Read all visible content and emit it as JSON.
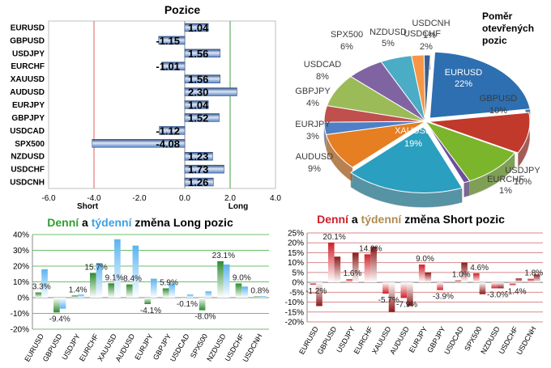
{
  "chart_data": [
    {
      "type": "bar",
      "title": "Pozice",
      "orientation": "horizontal",
      "categories": [
        "EURUSD",
        "GBPUSD",
        "USDJPY",
        "EURCHF",
        "XAUUSD",
        "AUDUSD",
        "EURJPY",
        "GBPJPY",
        "USDCAD",
        "SPX500",
        "NZDUSD",
        "USDCHF",
        "USDCNH"
      ],
      "values": [
        1.04,
        -1.15,
        1.56,
        -1.01,
        1.56,
        2.3,
        1.04,
        1.52,
        -1.12,
        -4.08,
        1.23,
        1.73,
        1.26
      ],
      "value_labels": [
        "1.04",
        "-1.15",
        "1.56",
        "-1.01",
        "1.56",
        "2.30",
        "1.04",
        "1.52",
        "-1.12",
        "-4.08",
        "1.23",
        "1.73",
        "1.26"
      ],
      "xlim": [
        -6,
        4
      ],
      "xticks": [
        "-6.0",
        "-4.0",
        "-2.0",
        "0.0",
        "2.0",
        "4.0"
      ],
      "annotations": {
        "left": "Short",
        "right": "Long"
      },
      "reference_lines": [
        {
          "x": -4,
          "color": "#e06060"
        },
        {
          "x": 0,
          "color": "#888888"
        },
        {
          "x": 2,
          "color": "#40a040"
        }
      ],
      "colors": {
        "bar": "#5b84c6",
        "bar_light": "#dce6f5",
        "bar_dark": "#2e4f86"
      }
    },
    {
      "type": "pie",
      "title": "Poměr otevřených pozic",
      "slices": [
        {
          "label": "EURUSD",
          "percent": 22,
          "text": "22%",
          "color": "#2d6fb0"
        },
        {
          "label": "GBPUSD",
          "percent": 10,
          "text": "10%",
          "color": "#c0392b"
        },
        {
          "label": "USDJPY",
          "percent": 10,
          "text": "10%",
          "color": "#7bb52b"
        },
        {
          "label": "EURCHF",
          "percent": 1,
          "text": "1%",
          "color": "#6c4d9e"
        },
        {
          "label": "XAUUSD",
          "percent": 19,
          "text": "19%",
          "color": "#2b9fbf"
        },
        {
          "label": "AUDUSD",
          "percent": 9,
          "text": "9%",
          "color": "#e67e22"
        },
        {
          "label": "EURJPY",
          "percent": 3,
          "text": "3%",
          "color": "#4f7fc4"
        },
        {
          "label": "GBPJPY",
          "percent": 4,
          "text": "4%",
          "color": "#c0504d"
        },
        {
          "label": "USDCAD",
          "percent": 8,
          "text": "8%",
          "color": "#9bbb59"
        },
        {
          "label": "SPX500",
          "percent": 6,
          "text": "6%",
          "color": "#8064a2"
        },
        {
          "label": "NZDUSD",
          "percent": 5,
          "text": "5%",
          "color": "#4bacc6"
        },
        {
          "label": "USDCHF",
          "percent": 2,
          "text": "2%",
          "color": "#f79646"
        },
        {
          "label": "USDCNH",
          "percent": 1,
          "text": "1%",
          "color": "#3a5f8f"
        }
      ]
    },
    {
      "type": "bar",
      "title_parts": [
        "Denní",
        " a ",
        "týdenní",
        " změna Long pozic"
      ],
      "title_colors": [
        "#2ea02e",
        "#000000",
        "#3da0e8",
        "#000000"
      ],
      "categories": [
        "EURUSD",
        "GBPUSD",
        "USDJPY",
        "EURCHF",
        "XAUUSD",
        "AUDUSD",
        "EURJPY",
        "GBPJPY",
        "USDCAD",
        "SPX500",
        "NZDUSD",
        "USDCHF",
        "USDCNH"
      ],
      "series": [
        {
          "name": "Denní",
          "values": [
            3.3,
            -9.4,
            1.4,
            15.7,
            9.1,
            8.4,
            -4.1,
            5.9,
            -0.1,
            -8.0,
            23.1,
            9.0,
            0.8
          ],
          "color": "#2e8b2e"
        },
        {
          "name": "týdenní",
          "values": [
            18,
            -7,
            2,
            22,
            37,
            33,
            12,
            9,
            2,
            4,
            21,
            7,
            1
          ],
          "color": "#5bb3f0"
        }
      ],
      "value_labels": [
        "3.3%",
        "-9.4%",
        "1.4%",
        "15.7%",
        "9.1%",
        "8.4%",
        "-4.1%",
        "5.9%",
        "-0.1%",
        "-8.0%",
        "23.1%",
        "9.0%",
        "0.8%"
      ],
      "ylim": [
        -20,
        40
      ],
      "yticks": [
        "40%",
        "30%",
        "20%",
        "10%",
        "0%",
        "-10%",
        "-20%"
      ]
    },
    {
      "type": "bar",
      "title_parts": [
        "Denní",
        " a ",
        "týdenní",
        " změna Short pozic"
      ],
      "title_colors": [
        "#d0202a",
        "#000000",
        "#b08a50",
        "#000000"
      ],
      "categories": [
        "EURUSD",
        "GBPUSD",
        "USDJPY",
        "EURCHF",
        "XAUUSD",
        "AUDUSD",
        "EURJPY",
        "GBPJPY",
        "USDCAD",
        "SPX500",
        "NZDUSD",
        "USDCHF",
        "USDCNH"
      ],
      "series": [
        {
          "name": "Denní",
          "values": [
            -1.2,
            20.1,
            1.6,
            14.2,
            -5.7,
            -7.9,
            9.0,
            -3.9,
            1.0,
            4.6,
            -3.0,
            -1.4,
            1.8
          ],
          "color": "#d0202a"
        },
        {
          "name": "týdenní",
          "values": [
            -12,
            13,
            15,
            18,
            -15,
            -12,
            5,
            0,
            10,
            -6,
            -3,
            2,
            4
          ],
          "color": "#8b1a1a"
        }
      ],
      "value_labels": [
        "-1.2%",
        "20.1%",
        "1.6%",
        "14.2%",
        "-5.7%",
        "-7.9%",
        "9.0%",
        "-3.9%",
        "1.0%",
        "4.6%",
        "-3.0%",
        "-1.4%",
        "1.8%"
      ],
      "ylim": [
        -20,
        25
      ],
      "yticks": [
        "25%",
        "20%",
        "15%",
        "10%",
        "5%",
        "0%",
        "-5%",
        "-10%",
        "-15%",
        "-20%"
      ]
    }
  ]
}
